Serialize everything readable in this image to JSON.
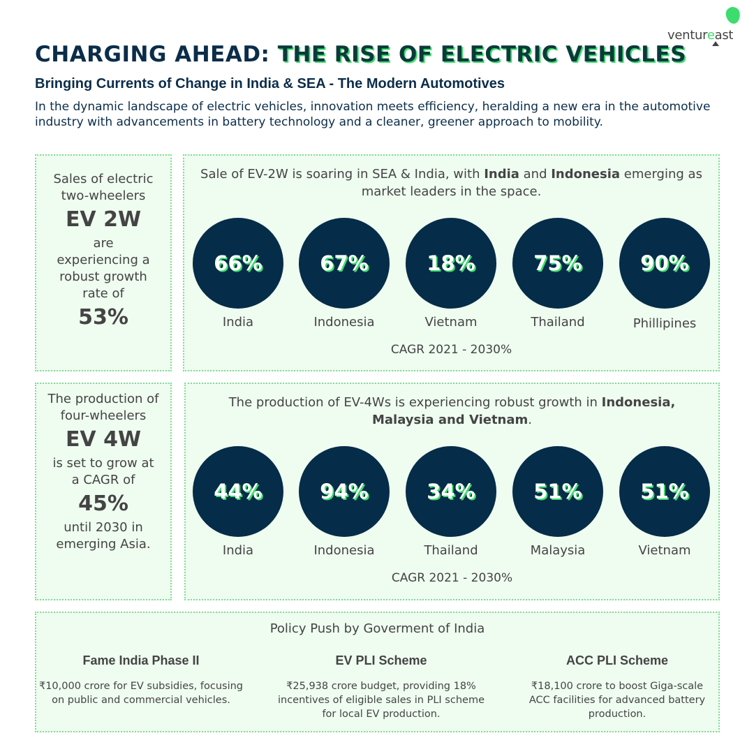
{
  "logo": {
    "text_main": "ventur",
    "text_accent": "e",
    "text_end": "ast"
  },
  "header": {
    "title_part1": "CHARGING AHEAD:",
    "title_part2": "THE RISE OF ELECTRIC VEHICLES",
    "subtitle": "Bringing Currents of Change in India & SEA - The Modern Automotives",
    "intro": "In the dynamic landscape of electric vehicles, innovation meets efficiency, heralding a new era in the automotive industry with advancements in battery technology and a cleaner, greener approach to mobility."
  },
  "ev2w": {
    "side": {
      "line1": "Sales of electric two-wheelers",
      "big": "EV 2W",
      "line2": "are experiencing a robust growth rate of",
      "value": "53%"
    },
    "headline_pre": "Sale of EV-2W is soaring in SEA & India, with ",
    "headline_b1": "India",
    "headline_mid": " and ",
    "headline_b2": "Indonesia",
    "headline_post": " emerging as market leaders in the space.",
    "countries": [
      {
        "value": "66%",
        "name": "India"
      },
      {
        "value": "67%",
        "name": "Indonesia"
      },
      {
        "value": "18%",
        "name": "Vietnam"
      },
      {
        "value": "75%",
        "name": "Thailand"
      },
      {
        "value": "90%",
        "name": "Phillipines"
      }
    ],
    "caption": "CAGR 2021 - 2030%"
  },
  "ev4w": {
    "side": {
      "line1": "The production of four-wheelers",
      "big": "EV 4W",
      "line2": "is set to grow at a CAGR of",
      "value": "45%",
      "line3": "until 2030 in emerging Asia."
    },
    "headline_pre": "The production of EV-4Ws is experiencing robust growth in ",
    "headline_b1": "Indonesia, Malaysia and Vietnam",
    "headline_post": ".",
    "countries": [
      {
        "value": "44%",
        "name": "India"
      },
      {
        "value": "94%",
        "name": "Indonesia"
      },
      {
        "value": "34%",
        "name": "Thailand"
      },
      {
        "value": "51%",
        "name": "Malaysia"
      },
      {
        "value": "51%",
        "name": "Vietnam"
      }
    ],
    "caption": "CAGR 2021 - 2030%"
  },
  "policy": {
    "title": "Policy Push by Goverment of India",
    "items": [
      {
        "name": "Fame India Phase II",
        "desc": "₹10,000 crore for EV subsidies, focusing on public and commercial vehicles."
      },
      {
        "name": "EV PLI Scheme",
        "desc": "₹25,938 crore budget, providing 18% incentives of eligible sales in PLI scheme for local EV production."
      },
      {
        "name": "ACC PLI Scheme",
        "desc": "₹18,100 crore to boost Giga-scale ACC facilities for advanced battery production."
      }
    ]
  },
  "colors": {
    "navy": "#052c48",
    "green": "#3ddc6e",
    "panel": "#effcf0"
  }
}
